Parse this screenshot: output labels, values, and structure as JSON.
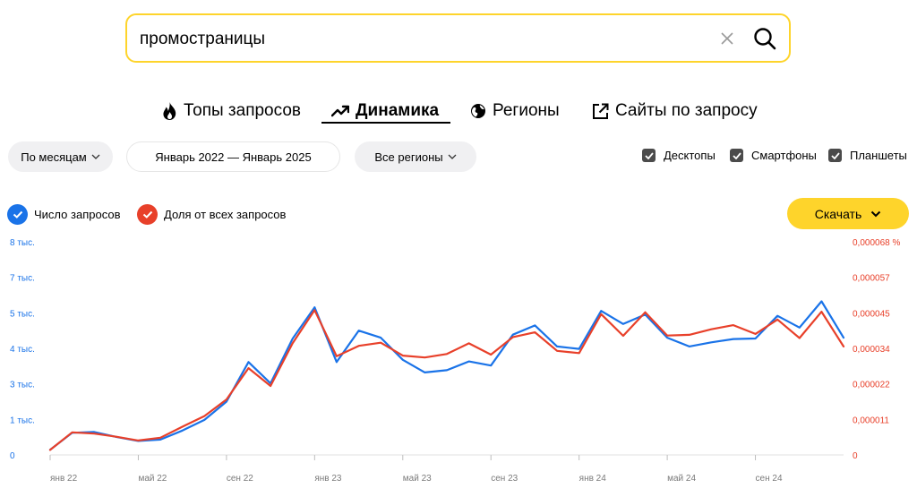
{
  "search": {
    "query": "промостраницы"
  },
  "tabs": [
    {
      "label": "Топы запросов",
      "icon": "fire-icon",
      "active": false
    },
    {
      "label": "Динамика",
      "icon": "trend-up-icon",
      "active": true
    },
    {
      "label": "Регионы",
      "icon": "globe-icon",
      "active": false
    },
    {
      "label": "Сайты по запросу",
      "icon": "external-link-icon",
      "active": false
    }
  ],
  "filters": {
    "period_label": "По месяцам",
    "date_range": "Январь 2022 — Январь 2025",
    "region_label": "Все регионы"
  },
  "devices": [
    {
      "label": "Десктопы",
      "checked": true
    },
    {
      "label": "Смартфоны",
      "checked": true
    },
    {
      "label": "Планшеты",
      "checked": true
    }
  ],
  "legend": [
    {
      "label": "Число запросов",
      "color": "#1a73e8"
    },
    {
      "label": "Доля от всех запросов",
      "color": "#e8402a"
    }
  ],
  "download_label": "Скачать",
  "chart_data": {
    "type": "line",
    "x": [
      "янв 22",
      "фев 22",
      "мар 22",
      "апр 22",
      "май 22",
      "июн 22",
      "июл 22",
      "авг 22",
      "сен 22",
      "окт 22",
      "ноя 22",
      "дек 22",
      "янв 23",
      "фев 23",
      "мар 23",
      "апр 23",
      "май 23",
      "июн 23",
      "июл 23",
      "авг 23",
      "сен 23",
      "окт 23",
      "ноя 23",
      "дек 23",
      "янв 24",
      "фев 24",
      "мар 24",
      "апр 24",
      "май 24",
      "июн 24",
      "июл 24",
      "авг 24",
      "сен 24",
      "окт 24",
      "ноя 24",
      "дек 24",
      "янв 25"
    ],
    "x_tick_labels": [
      "янв 22",
      "май 22",
      "сен 22",
      "янв 23",
      "май 23",
      "сен 23",
      "янв 24",
      "май 24",
      "сен 24"
    ],
    "y_left_ticks": [
      "0",
      "1 тыс.",
      "3 тыс.",
      "4 тыс.",
      "5 тыс.",
      "7 тыс.",
      "8 тыс."
    ],
    "y_right_ticks": [
      "0",
      "0,000011",
      "0,000022",
      "0,000034",
      "0,000045",
      "0,000057",
      "0,000068 %"
    ],
    "ylim_left": [
      0,
      7800
    ],
    "ylim_right": [
      0,
      6.8e-05
    ],
    "series": [
      {
        "name": "Число запросов",
        "axis": "left",
        "color": "#1a73e8",
        "values": [
          190,
          810,
          840,
          660,
          510,
          560,
          890,
          1280,
          1950,
          3400,
          2620,
          4250,
          5400,
          3400,
          4550,
          4290,
          3480,
          3020,
          3100,
          3420,
          3270,
          4400,
          4740,
          3970,
          3880,
          5270,
          4790,
          5140,
          4290,
          3970,
          4120,
          4240,
          4260,
          5090,
          4660,
          5620,
          4290
        ]
      },
      {
        "name": "Доля от всех запросов",
        "axis": "right",
        "color": "#e8402a",
        "values": [
          1.6e-06,
          7.2e-06,
          6.8e-06,
          5.8e-06,
          4.6e-06,
          5.5e-06,
          9e-06,
          1.24e-05,
          1.77e-05,
          2.77e-05,
          2.2e-05,
          3.56e-05,
          4.62e-05,
          3.15e-05,
          3.48e-05,
          3.58e-05,
          3.17e-05,
          3.11e-05,
          3.22e-05,
          3.56e-05,
          3.2e-05,
          3.76e-05,
          3.91e-05,
          3.32e-05,
          3.25e-05,
          4.49e-05,
          3.8e-05,
          4.55e-05,
          3.81e-05,
          3.83e-05,
          4.01e-05,
          4.14e-05,
          3.86e-05,
          4.32e-05,
          3.73e-05,
          4.57e-05,
          3.46e-05
        ]
      }
    ]
  }
}
